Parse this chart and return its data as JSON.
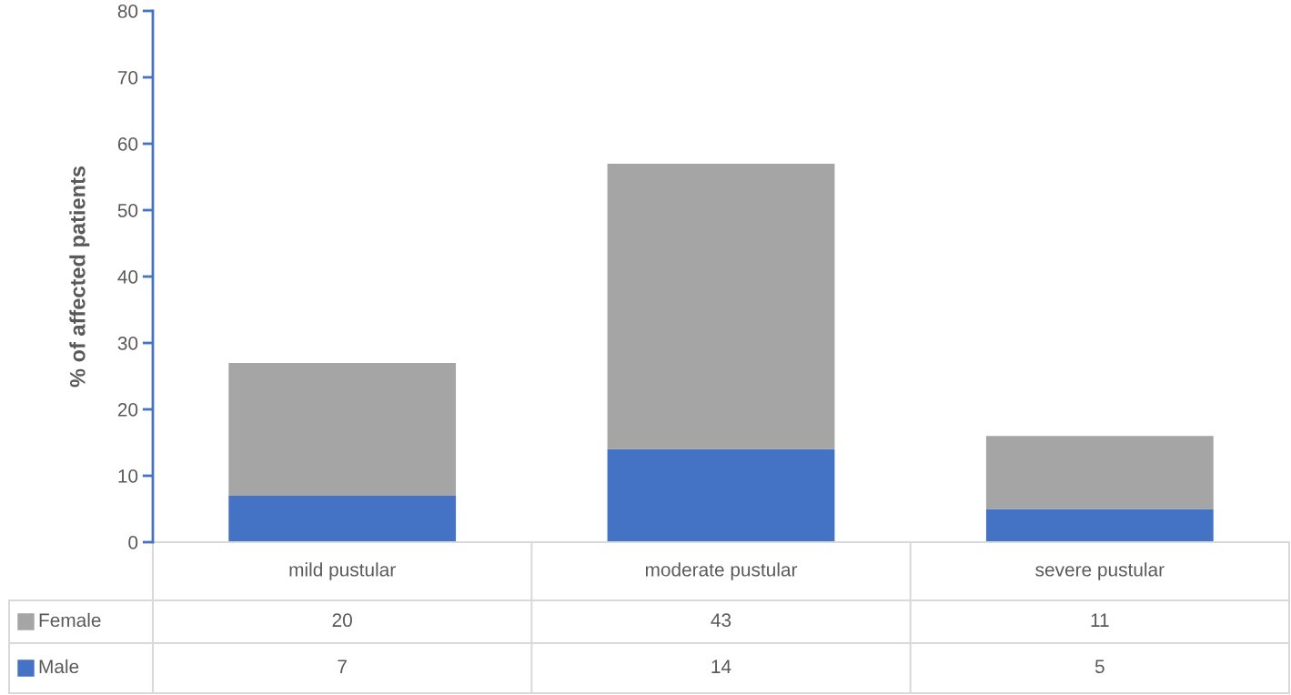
{
  "chart_data": {
    "type": "bar",
    "stacked": true,
    "ylabel": "% of affected patients",
    "categories": [
      "mild pustular",
      "moderate pustular",
      "severe pustular"
    ],
    "series": [
      {
        "name": "Male",
        "color": "#4472c4",
        "values": [
          7,
          14,
          5
        ]
      },
      {
        "name": "Female",
        "color": "#a5a5a5",
        "values": [
          20,
          43,
          11
        ]
      }
    ],
    "ylim": [
      0,
      80
    ],
    "yticks": [
      0,
      10,
      20,
      30,
      40,
      50,
      60,
      70,
      80
    ],
    "data_labels": true,
    "legend": "bottom",
    "grid": false
  }
}
